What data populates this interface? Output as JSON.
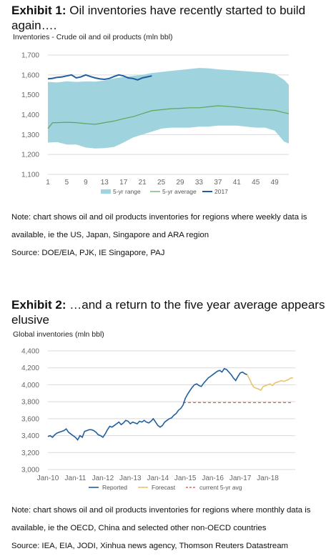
{
  "exhibit1": {
    "label": "Exhibit 1:",
    "title": " Oil inventories have recently started to build again….",
    "subtitle": "Inventories - Crude oil and oil products (mln bbl)",
    "note": "Note: chart shows oil and oil products inventories for regions where weekly data is available, ie the US, Japan, Singapore and ARA region",
    "source": "Source: DOE/EIA, PJK, IE Singapore, PAJ"
  },
  "exhibit2": {
    "label": "Exhibit 2:",
    "title": "  …and a return to the five year average appears elusive",
    "subtitle": "Global inventories (mln bbl)",
    "note": "Note: chart shows oil and oil products inventories for regions where monthly data is available, ie the OECD, China and selected other non-OECD countries",
    "source": "Source: IEA, EIA, JODI, Xinhua news agency, Thomson Reuters Datastream"
  },
  "colors": {
    "range_fill": "#9fd3de",
    "avg_line": "#5aa85a",
    "y2017_line": "#1f5fa0",
    "reported_line": "#1f5fa0",
    "forecast_line": "#e8c46a",
    "five_yr_avg_line": "#e04a3a",
    "grid": "#d9d9d9"
  },
  "chart_data": [
    {
      "type": "area",
      "xlabel": "",
      "ylabel": "",
      "xlim": [
        1,
        52
      ],
      "ylim": [
        1100,
        1700
      ],
      "x_ticks": [
        1,
        5,
        9,
        13,
        17,
        21,
        25,
        29,
        33,
        37,
        41,
        45,
        49
      ],
      "y_ticks": [
        1100,
        1200,
        1300,
        1400,
        1500,
        1600,
        1700
      ],
      "y_tick_labels": [
        "1,100",
        "1,200",
        "1,300",
        "1,400",
        "1,500",
        "1,600",
        "1,700"
      ],
      "grid": true,
      "legend_position": "bottom",
      "range_x": [
        1,
        3,
        5,
        7,
        9,
        11,
        13,
        15,
        17,
        19,
        21,
        23,
        25,
        27,
        29,
        31,
        33,
        35,
        37,
        39,
        41,
        43,
        45,
        47,
        49,
        51,
        52
      ],
      "range_high": [
        1565,
        1562,
        1568,
        1565,
        1567,
        1566,
        1572,
        1582,
        1590,
        1595,
        1600,
        1610,
        1615,
        1620,
        1625,
        1630,
        1635,
        1633,
        1628,
        1625,
        1622,
        1618,
        1615,
        1612,
        1605,
        1575,
        1550
      ],
      "range_low": [
        1260,
        1262,
        1250,
        1250,
        1235,
        1230,
        1232,
        1238,
        1260,
        1285,
        1300,
        1315,
        1330,
        1335,
        1335,
        1335,
        1340,
        1340,
        1345,
        1345,
        1345,
        1340,
        1335,
        1335,
        1320,
        1265,
        1255
      ],
      "series": [
        {
          "name": "5-yr range",
          "kind": "band"
        },
        {
          "name": "5-yr average",
          "x": [
            1,
            2,
            3,
            5,
            7,
            9,
            11,
            13,
            15,
            17,
            19,
            21,
            23,
            25,
            27,
            29,
            31,
            33,
            35,
            37,
            39,
            41,
            43,
            45,
            47,
            49,
            51,
            52
          ],
          "values": [
            1330,
            1360,
            1360,
            1362,
            1360,
            1355,
            1352,
            1360,
            1368,
            1380,
            1390,
            1405,
            1420,
            1425,
            1430,
            1432,
            1435,
            1435,
            1440,
            1445,
            1442,
            1438,
            1433,
            1430,
            1425,
            1422,
            1410,
            1405
          ]
        },
        {
          "name": "2017",
          "x": [
            1,
            2,
            3,
            4,
            5,
            6,
            7,
            8,
            9,
            10,
            11,
            12,
            13,
            14,
            15,
            16,
            17,
            18,
            19,
            20,
            21,
            22,
            23
          ],
          "values": [
            1580,
            1583,
            1588,
            1590,
            1595,
            1600,
            1585,
            1590,
            1600,
            1592,
            1585,
            1580,
            1578,
            1582,
            1592,
            1600,
            1595,
            1585,
            1582,
            1575,
            1585,
            1590,
            1595
          ]
        }
      ]
    },
    {
      "type": "line",
      "xlabel": "",
      "ylabel": "",
      "xlim": [
        0,
        108
      ],
      "ylim": [
        3000,
        4400
      ],
      "x_tick_labels": [
        "Jan-10",
        "Jan-11",
        "Jan-12",
        "Jan-13",
        "Jan-14",
        "Jan-15",
        "Jan-16",
        "Jan-17",
        "Jan-18"
      ],
      "y_ticks": [
        3000,
        3200,
        3400,
        3600,
        3800,
        4000,
        4200,
        4400
      ],
      "y_tick_labels": [
        "3,000",
        "3,200",
        "3,400",
        "3,600",
        "3,800",
        "4,000",
        "4,200",
        "4,400"
      ],
      "grid": true,
      "legend_position": "bottom",
      "series": [
        {
          "name": "Reported",
          "x": [
            0,
            1,
            2,
            3,
            4,
            5,
            6,
            7,
            8,
            9,
            10,
            11,
            12,
            13,
            14,
            15,
            16,
            17,
            18,
            19,
            20,
            21,
            22,
            23,
            24,
            25,
            26,
            27,
            28,
            29,
            30,
            31,
            32,
            33,
            34,
            35,
            36,
            37,
            38,
            39,
            40,
            41,
            42,
            43,
            44,
            45,
            46,
            47,
            48,
            49,
            50,
            51,
            52,
            53,
            54,
            55,
            56,
            57,
            58,
            59,
            60,
            61,
            62,
            63,
            64,
            65,
            66,
            67,
            68,
            69,
            70,
            71,
            72,
            73,
            74,
            75,
            76,
            77,
            78,
            79,
            80,
            81,
            82,
            83,
            84,
            85,
            86,
            87
          ],
          "values": [
            3390,
            3400,
            3380,
            3410,
            3430,
            3440,
            3450,
            3460,
            3480,
            3440,
            3420,
            3400,
            3380,
            3350,
            3400,
            3380,
            3450,
            3460,
            3470,
            3470,
            3460,
            3440,
            3410,
            3400,
            3380,
            3420,
            3470,
            3510,
            3500,
            3520,
            3540,
            3560,
            3530,
            3550,
            3580,
            3570,
            3540,
            3560,
            3550,
            3540,
            3570,
            3560,
            3580,
            3560,
            3550,
            3570,
            3600,
            3560,
            3520,
            3500,
            3520,
            3560,
            3580,
            3600,
            3610,
            3640,
            3660,
            3700,
            3720,
            3760,
            3840,
            3890,
            3930,
            3970,
            4000,
            4010,
            3990,
            3980,
            4020,
            4050,
            4080,
            4100,
            4120,
            4140,
            4160,
            4170,
            4150,
            4190,
            4180,
            4150,
            4120,
            4080,
            4050,
            4100,
            4140,
            4150,
            4130,
            4120
          ]
        },
        {
          "name": "Forecast",
          "x": [
            87,
            88,
            89,
            90,
            91,
            92,
            93,
            94,
            95,
            96,
            97,
            98,
            99,
            100,
            101,
            102,
            103,
            104,
            105,
            106,
            107
          ],
          "values": [
            4120,
            4070,
            4010,
            3970,
            3960,
            3950,
            3935,
            3980,
            3990,
            4000,
            4010,
            3990,
            4020,
            4030,
            4040,
            4050,
            4040,
            4050,
            4060,
            4080,
            4080
          ]
        },
        {
          "name": "current 5-yr avg",
          "x": [
            59,
            107
          ],
          "values": [
            3790,
            3790
          ],
          "style": "dashed"
        }
      ]
    }
  ]
}
